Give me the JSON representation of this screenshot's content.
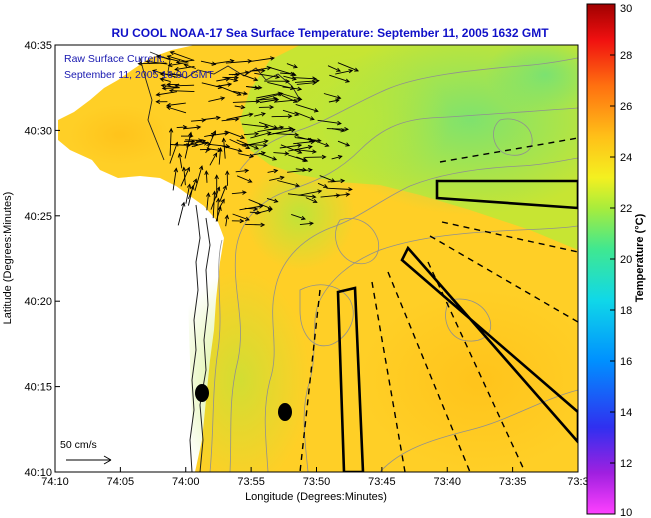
{
  "chart_data": {
    "type": "heatmap",
    "title": "RU COOL  NOAA-17  Sea Surface Temperature:  September 11, 2005 1632 GMT",
    "xlabel": "Longitude (Degrees:Minutes)",
    "ylabel": "Latitude (Degrees:Minutes)",
    "xlim_minutes_west": [
      10,
      -30
    ],
    "ylim_minutes": [
      10,
      35
    ],
    "x_ticks": [
      {
        "v": 10,
        "label": "74:10"
      },
      {
        "v": 5,
        "label": "74:05"
      },
      {
        "v": 0,
        "label": "74:00"
      },
      {
        "v": -5,
        "label": "73:55"
      },
      {
        "v": -10,
        "label": "73:50"
      },
      {
        "v": -15,
        "label": "73:45"
      },
      {
        "v": -20,
        "label": "73:40"
      },
      {
        "v": -25,
        "label": "73:35"
      },
      {
        "v": -30,
        "label": "73:3"
      }
    ],
    "y_ticks": [
      {
        "v": 35,
        "label": "40:35"
      },
      {
        "v": 30,
        "label": "40:30"
      },
      {
        "v": 25,
        "label": "40:25"
      },
      {
        "v": 20,
        "label": "40:20"
      },
      {
        "v": 15,
        "label": "40:15"
      },
      {
        "v": 10,
        "label": "40:10"
      }
    ],
    "colorbar": {
      "label": "Temperature (°C)",
      "range": [
        10,
        30
      ],
      "ticks": [
        "30",
        "28",
        "26",
        "24",
        "22",
        "20",
        "18",
        "16",
        "14",
        "12",
        "10"
      ]
    },
    "annotations": {
      "line1": "Raw Surface Current:",
      "line2": "September 11, 2005 16:00 GMT",
      "scale_label": "50 cm/s"
    },
    "colors": {
      "title": "#1010c8",
      "annotation": "#1818b0",
      "land": "#ffffff",
      "sst_warm": "#ffcc22",
      "sst_mid": "#c8e830",
      "sst_cool": "#7ee66e"
    }
  }
}
